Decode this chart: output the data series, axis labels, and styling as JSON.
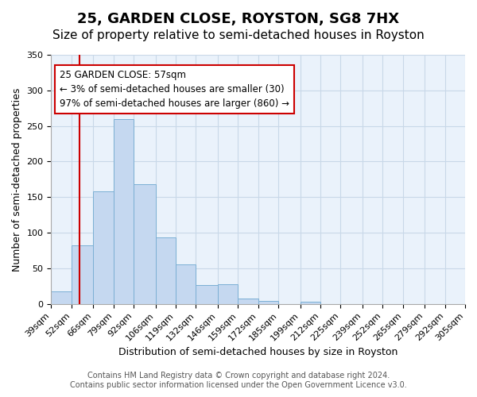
{
  "title": "25, GARDEN CLOSE, ROYSTON, SG8 7HX",
  "subtitle": "Size of property relative to semi-detached houses in Royston",
  "xlabel": "Distribution of semi-detached houses by size in Royston",
  "ylabel": "Number of semi-detached properties",
  "bin_labels": [
    "39sqm",
    "52sqm",
    "66sqm",
    "79sqm",
    "92sqm",
    "106sqm",
    "119sqm",
    "132sqm",
    "146sqm",
    "159sqm",
    "172sqm",
    "185sqm",
    "199sqm",
    "212sqm",
    "225sqm",
    "239sqm",
    "252sqm",
    "265sqm",
    "279sqm",
    "292sqm",
    "305sqm"
  ],
  "bin_edges": [
    39,
    52,
    66,
    79,
    92,
    106,
    119,
    132,
    146,
    159,
    172,
    185,
    199,
    212,
    225,
    239,
    252,
    265,
    279,
    292,
    305
  ],
  "bar_heights": [
    18,
    82,
    158,
    260,
    168,
    93,
    55,
    27,
    28,
    7,
    4,
    0,
    3,
    0,
    0,
    0,
    0,
    0,
    0,
    0
  ],
  "bar_color": "#c5d8f0",
  "bar_edge_color": "#7bafd4",
  "property_size": 57,
  "red_line_x": 57,
  "annotation_title": "25 GARDEN CLOSE: 57sqm",
  "annotation_line1": "← 3% of semi-detached houses are smaller (30)",
  "annotation_line2": "97% of semi-detached houses are larger (860) →",
  "annotation_box_color": "#ffffff",
  "annotation_box_edge_color": "#cc0000",
  "red_line_color": "#cc0000",
  "ylim": [
    0,
    350
  ],
  "yticks": [
    0,
    50,
    100,
    150,
    200,
    250,
    300,
    350
  ],
  "footer_line1": "Contains HM Land Registry data © Crown copyright and database right 2024.",
  "footer_line2": "Contains public sector information licensed under the Open Government Licence v3.0.",
  "background_color": "#ffffff",
  "grid_color": "#c8d8e8",
  "title_fontsize": 13,
  "subtitle_fontsize": 11,
  "axis_label_fontsize": 9,
  "tick_fontsize": 8,
  "footer_fontsize": 7
}
